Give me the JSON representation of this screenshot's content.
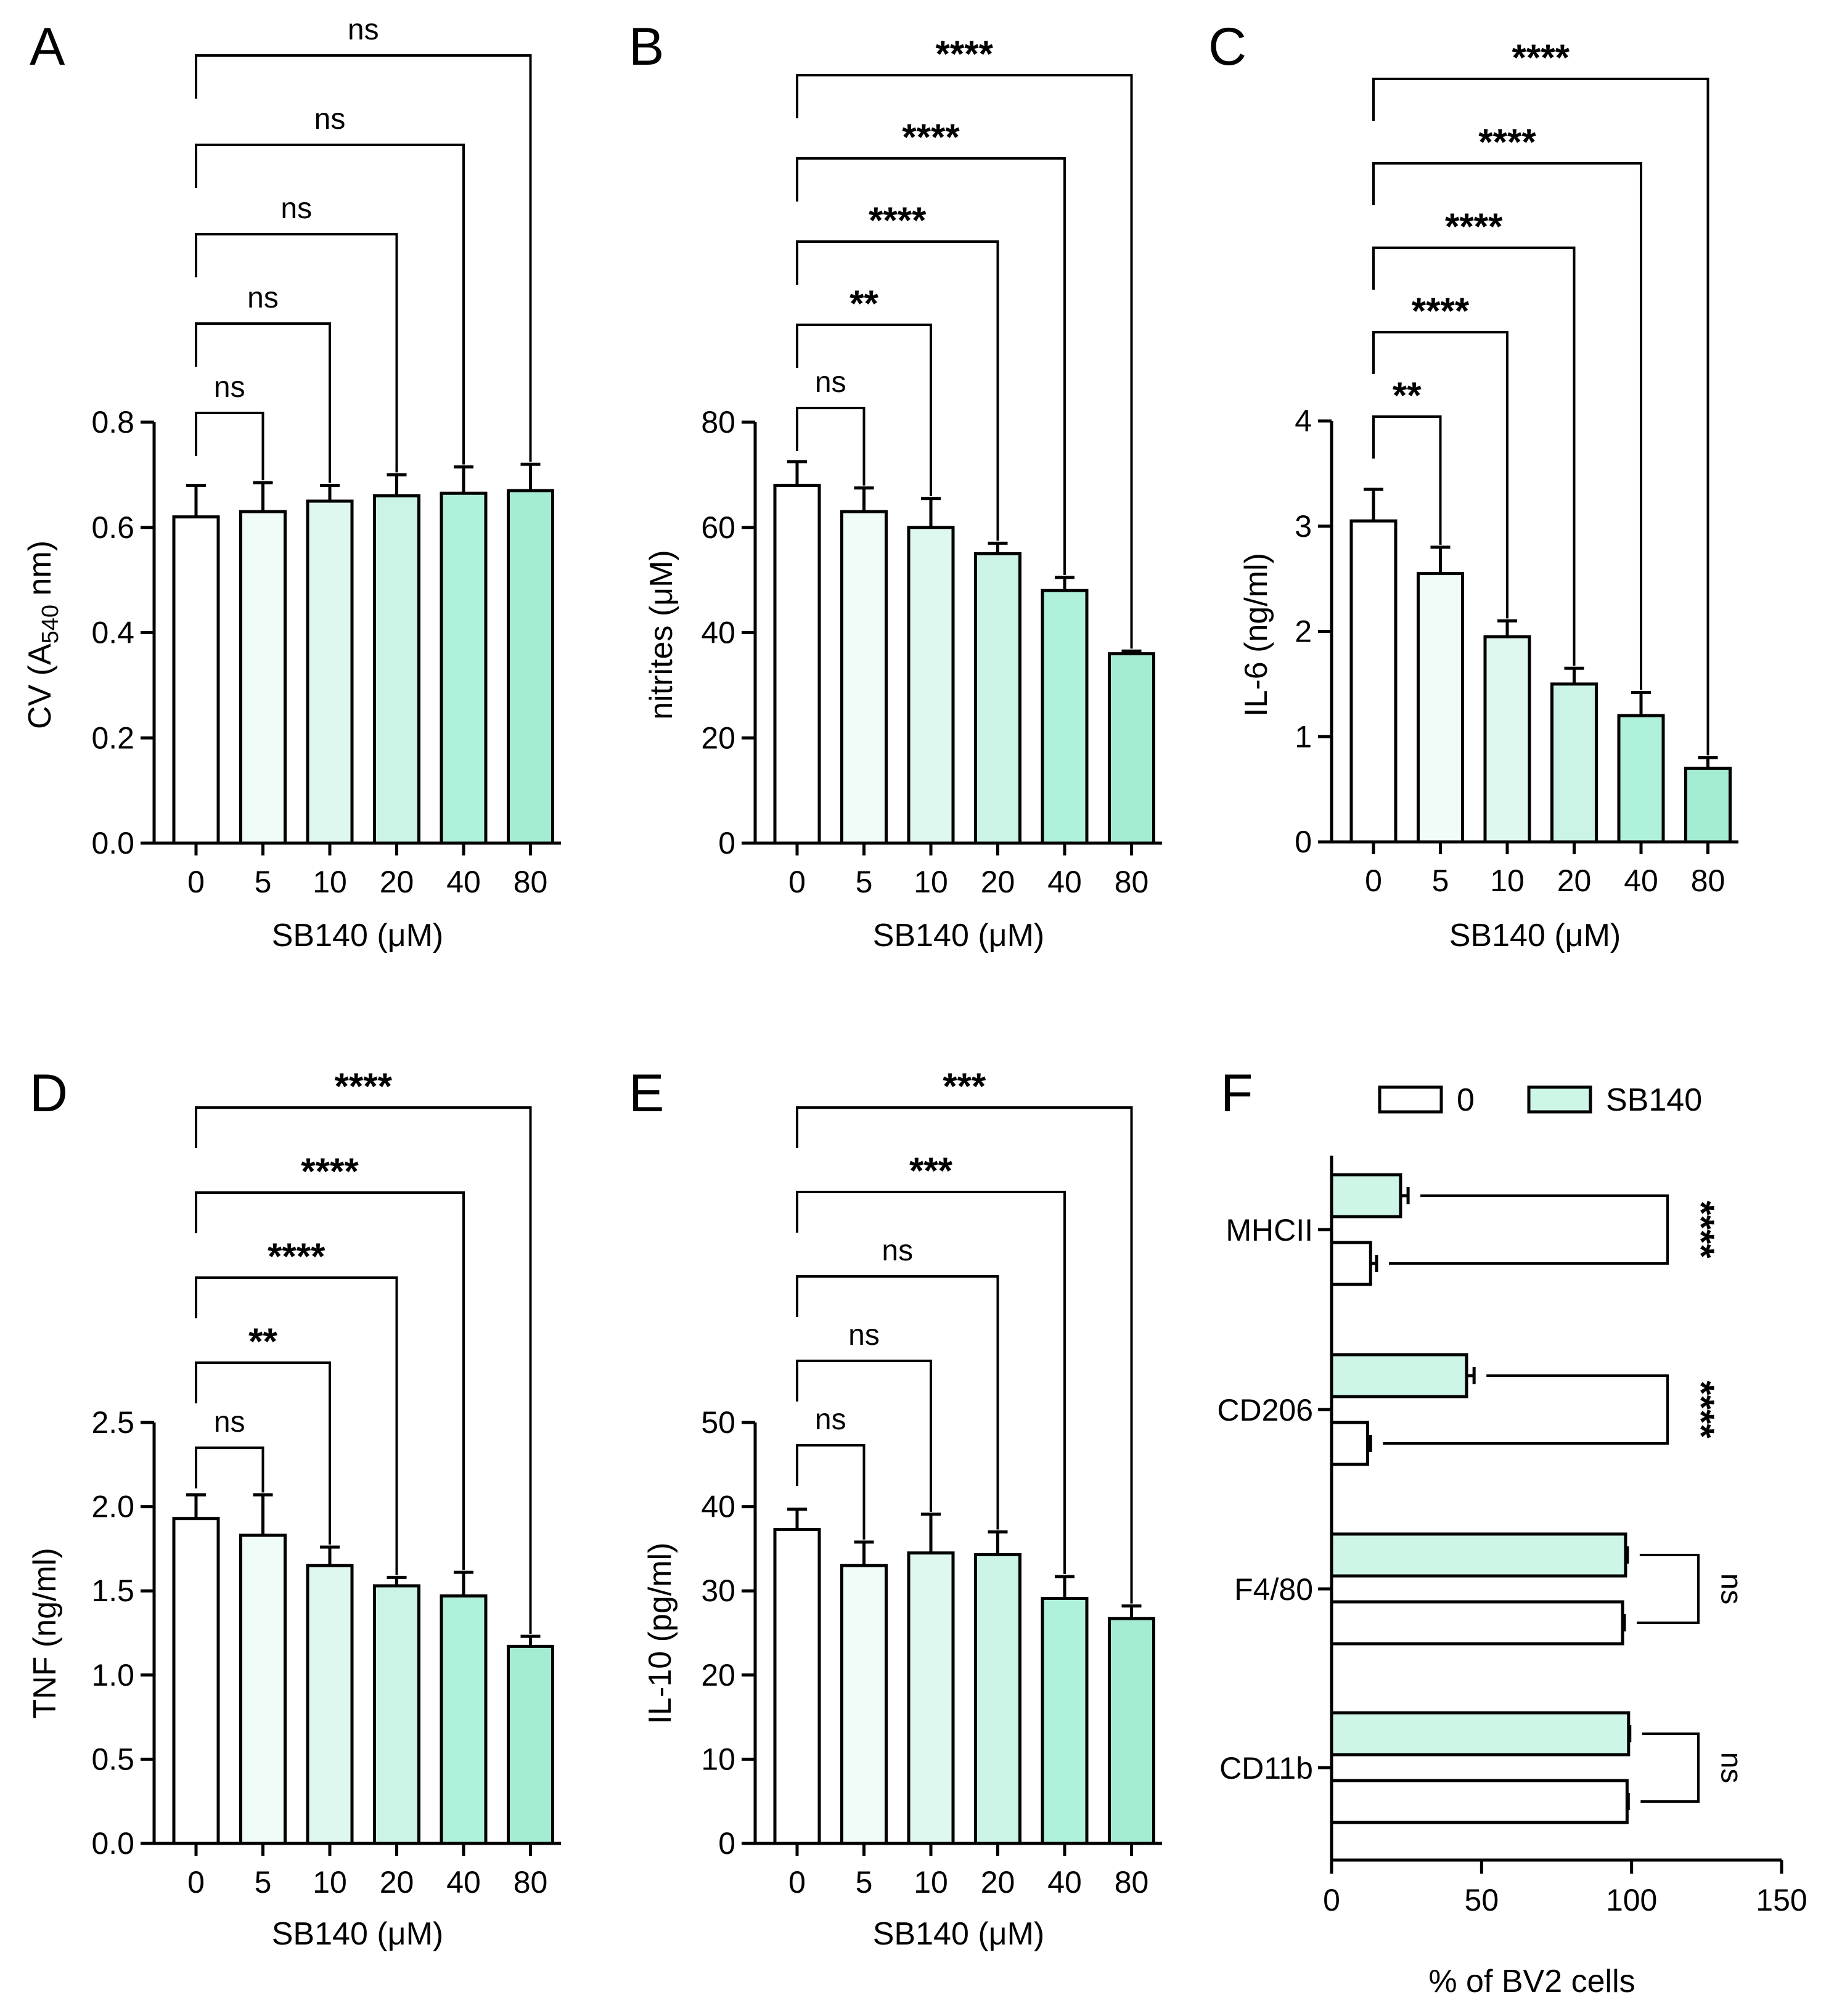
{
  "figure": {
    "palette": [
      "#ffffff",
      "#f0fcf8",
      "#dff8ef",
      "#cbf4e6",
      "#b0f1dc",
      "#a4ecd2"
    ],
    "sb140_color": "#cdf6e6",
    "panels_vertical": [
      {
        "letter": "A",
        "ylabel": "CV (A540 nm)",
        "ylabel_parts": [
          "CV (A",
          "540",
          " nm)"
        ],
        "xlabel": "SB140 (μM)",
        "ylim": [
          0,
          0.8
        ],
        "yticks": [
          "0.0",
          "0.2",
          "0.4",
          "0.6",
          "0.8"
        ],
        "categories": [
          "0",
          "5",
          "10",
          "20",
          "40",
          "80"
        ],
        "values": [
          0.62,
          0.63,
          0.65,
          0.66,
          0.665,
          0.67
        ],
        "errors": [
          0.06,
          0.055,
          0.03,
          0.04,
          0.05,
          0.05
        ],
        "comparisons": [
          {
            "to": "5",
            "label": "ns"
          },
          {
            "to": "10",
            "label": "ns"
          },
          {
            "to": "20",
            "label": "ns"
          },
          {
            "to": "40",
            "label": "ns"
          },
          {
            "to": "80",
            "label": "ns"
          }
        ]
      },
      {
        "letter": "B",
        "ylabel": "nitrites (μM)",
        "xlabel": "SB140 (μM)",
        "ylim": [
          0,
          80
        ],
        "yticks": [
          "0",
          "20",
          "40",
          "60",
          "80"
        ],
        "categories": [
          "0",
          "5",
          "10",
          "20",
          "40",
          "80"
        ],
        "values": [
          68,
          63,
          60,
          55,
          48,
          36
        ],
        "errors": [
          4.5,
          4.5,
          5.5,
          2,
          2.5,
          0.5
        ],
        "comparisons": [
          {
            "to": "5",
            "label": "ns"
          },
          {
            "to": "10",
            "label": "**"
          },
          {
            "to": "20",
            "label": "****"
          },
          {
            "to": "40",
            "label": "****"
          },
          {
            "to": "80",
            "label": "****"
          }
        ]
      },
      {
        "letter": "C",
        "ylabel": "IL-6 (ng/ml)",
        "xlabel": "SB140 (μM)",
        "ylim": [
          0,
          4
        ],
        "yticks": [
          "0",
          "1",
          "2",
          "3",
          "4"
        ],
        "categories": [
          "0",
          "5",
          "10",
          "20",
          "40",
          "80"
        ],
        "values": [
          3.05,
          2.55,
          1.95,
          1.5,
          1.2,
          0.7
        ],
        "errors": [
          0.3,
          0.25,
          0.15,
          0.15,
          0.22,
          0.1
        ],
        "comparisons": [
          {
            "to": "5",
            "label": "**"
          },
          {
            "to": "10",
            "label": "****"
          },
          {
            "to": "20",
            "label": "****"
          },
          {
            "to": "40",
            "label": "****"
          },
          {
            "to": "80",
            "label": "****"
          }
        ]
      },
      {
        "letter": "D",
        "ylabel": "TNF (ng/ml)",
        "xlabel": "SB140 (μM)",
        "ylim": [
          0,
          2.5
        ],
        "yticks": [
          "0.0",
          "0.5",
          "1.0",
          "1.5",
          "2.0",
          "2.5"
        ],
        "categories": [
          "0",
          "5",
          "10",
          "20",
          "40",
          "80"
        ],
        "values": [
          1.93,
          1.83,
          1.65,
          1.53,
          1.47,
          1.17
        ],
        "errors": [
          0.14,
          0.24,
          0.11,
          0.05,
          0.14,
          0.06
        ],
        "comparisons": [
          {
            "to": "5",
            "label": "ns"
          },
          {
            "to": "10",
            "label": "**"
          },
          {
            "to": "20",
            "label": "****"
          },
          {
            "to": "40",
            "label": "****"
          },
          {
            "to": "80",
            "label": "****"
          }
        ]
      },
      {
        "letter": "E",
        "ylabel": "IL-10 (pg/ml)",
        "xlabel": "SB140 (μM)",
        "ylim": [
          0,
          50
        ],
        "yticks": [
          "0",
          "10",
          "20",
          "30",
          "40",
          "50"
        ],
        "categories": [
          "0",
          "5",
          "10",
          "20",
          "40",
          "80"
        ],
        "values": [
          37.3,
          33,
          34.5,
          34.3,
          29.1,
          26.7
        ],
        "errors": [
          2.4,
          2.8,
          4.6,
          2.7,
          2.6,
          1.5
        ],
        "comparisons": [
          {
            "to": "5",
            "label": "ns"
          },
          {
            "to": "10",
            "label": "ns"
          },
          {
            "to": "20",
            "label": "ns"
          },
          {
            "to": "40",
            "label": "***"
          },
          {
            "to": "80",
            "label": "***"
          }
        ]
      }
    ],
    "panel_f": {
      "letter": "F",
      "xlabel": "% of BV2 cells",
      "xlim": [
        0,
        150
      ],
      "xticks": [
        "0",
        "50",
        "100",
        "150"
      ],
      "legend": [
        {
          "label": "0",
          "color": "#ffffff"
        },
        {
          "label": "SB140",
          "color": "#cdf6e6"
        }
      ],
      "groups": [
        {
          "label": "MHCII",
          "sb140": 23,
          "sb140_err": 2.5,
          "control": 13,
          "control_err": 2,
          "sig": "****"
        },
        {
          "label": "CD206",
          "sb140": 45,
          "sb140_err": 2.5,
          "control": 12,
          "control_err": 1,
          "sig": "****"
        },
        {
          "label": "F4/80",
          "sb140": 98,
          "sb140_err": 0.6,
          "control": 97,
          "control_err": 0.6,
          "sig": "ns"
        },
        {
          "label": "CD11b",
          "sb140": 99,
          "sb140_err": 0.4,
          "control": 98.5,
          "control_err": 0.4,
          "sig": "ns"
        }
      ]
    }
  },
  "chart_data": [
    {
      "type": "bar",
      "panel": "A",
      "title": "",
      "categories": [
        "0",
        "5",
        "10",
        "20",
        "40",
        "80"
      ],
      "series": [
        {
          "name": "CV (A540 nm)",
          "values": [
            0.62,
            0.63,
            0.65,
            0.66,
            0.665,
            0.67
          ],
          "errors": [
            0.06,
            0.055,
            0.03,
            0.04,
            0.05,
            0.05
          ]
        }
      ],
      "xlabel": "SB140 (μM)",
      "ylabel": "CV (A540 nm)",
      "ylim": [
        0,
        0.8
      ],
      "significance": [
        "ns",
        "ns",
        "ns",
        "ns",
        "ns"
      ]
    },
    {
      "type": "bar",
      "panel": "B",
      "title": "",
      "categories": [
        "0",
        "5",
        "10",
        "20",
        "40",
        "80"
      ],
      "series": [
        {
          "name": "nitrites (μM)",
          "values": [
            68,
            63,
            60,
            55,
            48,
            36
          ],
          "errors": [
            4.5,
            4.5,
            5.5,
            2,
            2.5,
            0.5
          ]
        }
      ],
      "xlabel": "SB140 (μM)",
      "ylabel": "nitrites (μM)",
      "ylim": [
        0,
        80
      ],
      "significance": [
        "ns",
        "**",
        "****",
        "****",
        "****"
      ]
    },
    {
      "type": "bar",
      "panel": "C",
      "title": "",
      "categories": [
        "0",
        "5",
        "10",
        "20",
        "40",
        "80"
      ],
      "series": [
        {
          "name": "IL-6 (ng/ml)",
          "values": [
            3.05,
            2.55,
            1.95,
            1.5,
            1.2,
            0.7
          ],
          "errors": [
            0.3,
            0.25,
            0.15,
            0.15,
            0.22,
            0.1
          ]
        }
      ],
      "xlabel": "SB140 (μM)",
      "ylabel": "IL-6 (ng/ml)",
      "ylim": [
        0,
        4
      ],
      "significance": [
        "**",
        "****",
        "****",
        "****",
        "****"
      ]
    },
    {
      "type": "bar",
      "panel": "D",
      "title": "",
      "categories": [
        "0",
        "5",
        "10",
        "20",
        "40",
        "80"
      ],
      "series": [
        {
          "name": "TNF (ng/ml)",
          "values": [
            1.93,
            1.83,
            1.65,
            1.53,
            1.47,
            1.17
          ],
          "errors": [
            0.14,
            0.24,
            0.11,
            0.05,
            0.14,
            0.06
          ]
        }
      ],
      "xlabel": "SB140 (μM)",
      "ylabel": "TNF (ng/ml)",
      "ylim": [
        0,
        2.5
      ],
      "significance": [
        "ns",
        "**",
        "****",
        "****",
        "****"
      ]
    },
    {
      "type": "bar",
      "panel": "E",
      "title": "",
      "categories": [
        "0",
        "5",
        "10",
        "20",
        "40",
        "80"
      ],
      "series": [
        {
          "name": "IL-10 (pg/ml)",
          "values": [
            37.3,
            33,
            34.5,
            34.3,
            29.1,
            26.7
          ],
          "errors": [
            2.4,
            2.8,
            4.6,
            2.7,
            2.6,
            1.5
          ]
        }
      ],
      "xlabel": "SB140 (μM)",
      "ylabel": "IL-10 (pg/ml)",
      "ylim": [
        0,
        50
      ],
      "significance": [
        "ns",
        "ns",
        "ns",
        "***",
        "***"
      ]
    },
    {
      "type": "bar",
      "panel": "F",
      "orientation": "horizontal",
      "title": "",
      "categories": [
        "MHCII",
        "CD206",
        "F4/80",
        "CD11b"
      ],
      "series": [
        {
          "name": "0",
          "values": [
            13,
            12,
            97,
            98.5
          ],
          "errors": [
            2,
            1,
            0.6,
            0.4
          ]
        },
        {
          "name": "SB140",
          "values": [
            23,
            45,
            98,
            99
          ],
          "errors": [
            2.5,
            2.5,
            0.6,
            0.4
          ]
        }
      ],
      "xlabel": "% of BV2 cells",
      "ylabel": "",
      "xlim": [
        0,
        150
      ],
      "significance": [
        "****",
        "****",
        "ns",
        "ns"
      ],
      "legend_position": "top"
    }
  ]
}
